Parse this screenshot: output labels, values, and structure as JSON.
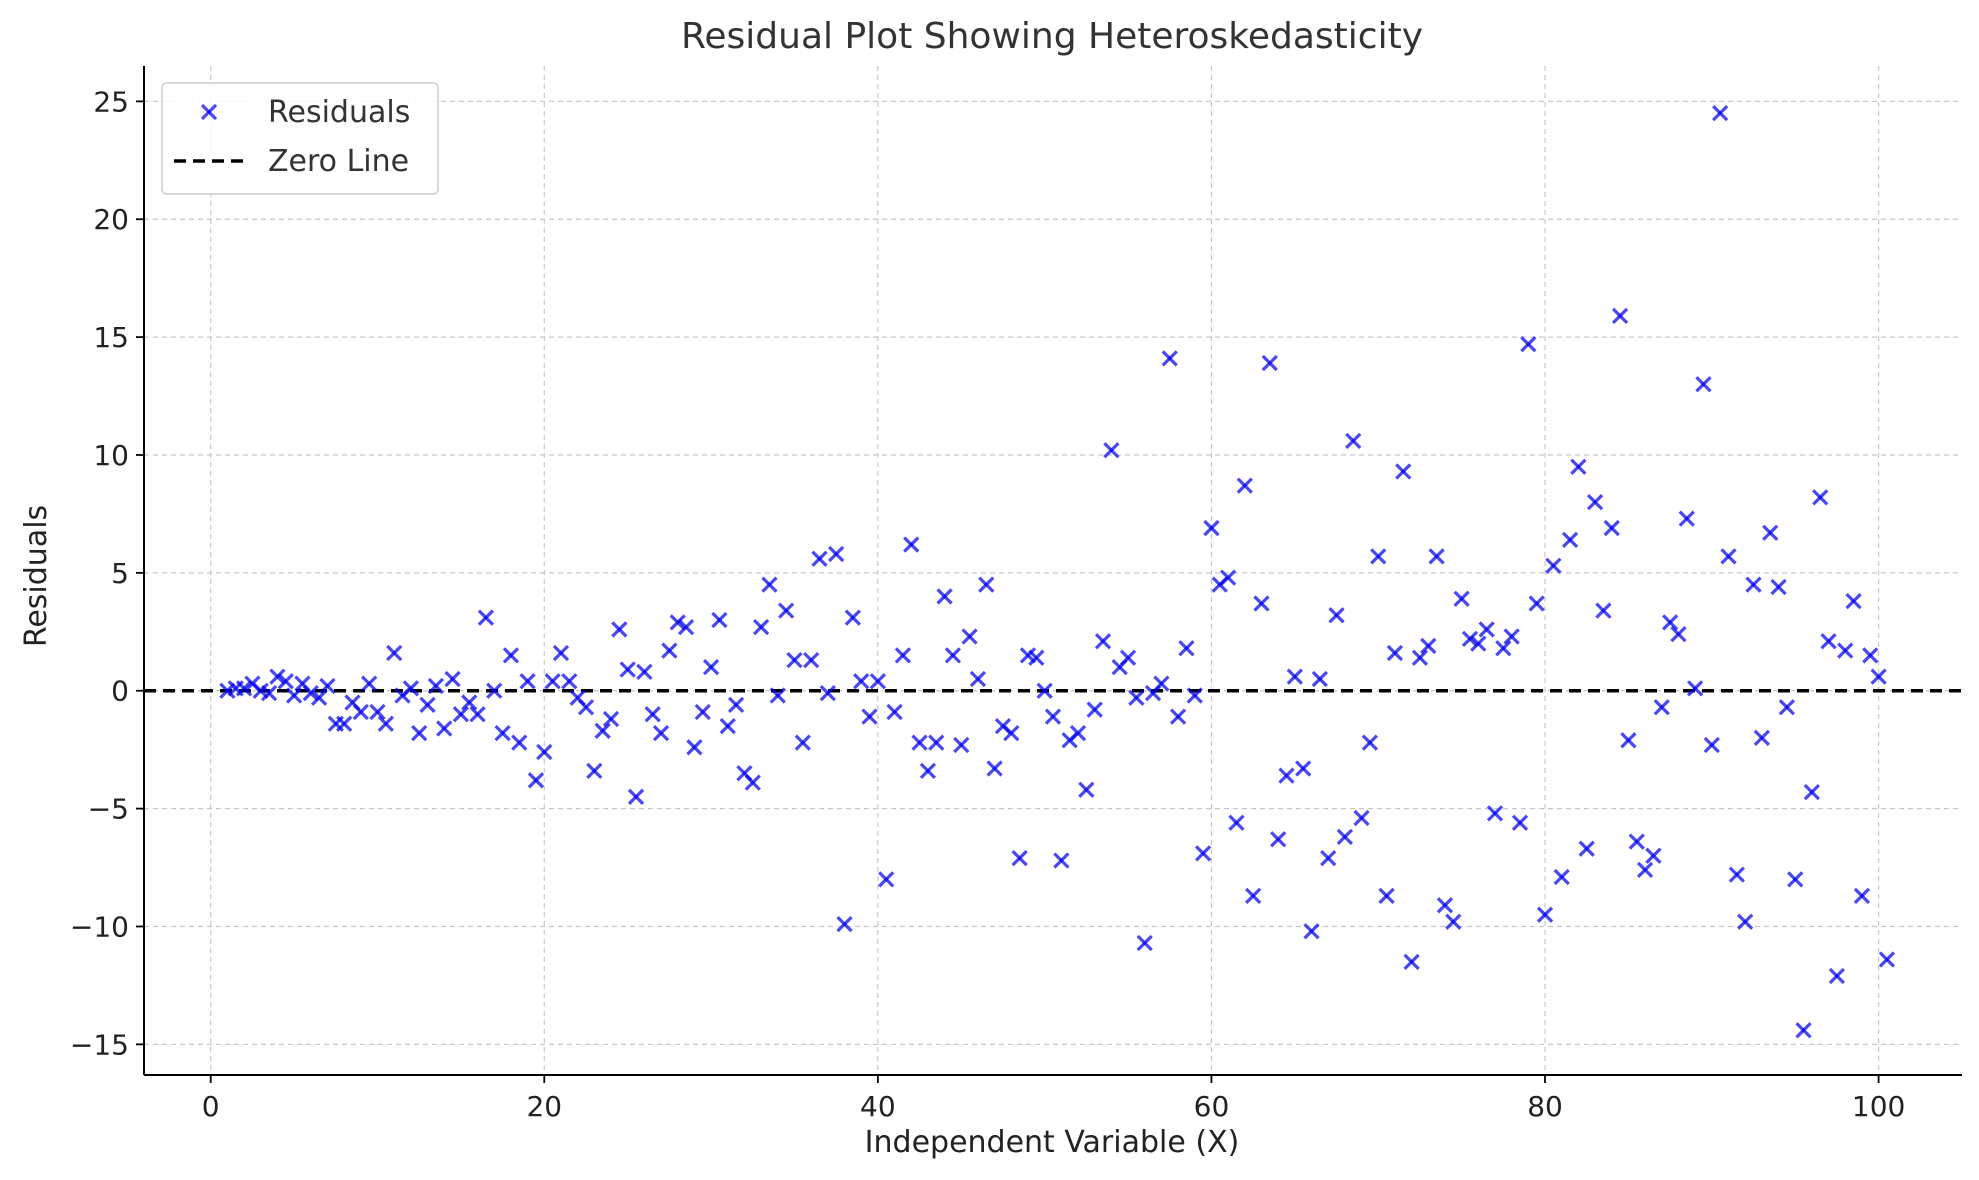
{
  "chart_data": {
    "type": "scatter",
    "title": "Residual Plot Showing Heteroskedasticity",
    "xlabel": "Independent Variable (X)",
    "ylabel": "Residuals",
    "xlim": [
      -4,
      105
    ],
    "ylim": [
      -16.3,
      26.5
    ],
    "xticks": [
      0,
      20,
      40,
      60,
      80,
      100
    ],
    "yticks": [
      -15,
      -10,
      -5,
      0,
      5,
      10,
      15,
      20,
      25
    ],
    "xtick_labels": [
      "0",
      "20",
      "40",
      "60",
      "80",
      "100"
    ],
    "ytick_labels": [
      "−15",
      "−10",
      "−5",
      "0",
      "5",
      "10",
      "15",
      "20",
      "25"
    ],
    "grid": true,
    "legend_position": "upper-left",
    "marker_color": "#0000ee",
    "zero_line_color": "#000000",
    "series": [
      {
        "name": "Residuals",
        "marker": "x",
        "points": [
          [
            1.0,
            0.0
          ],
          [
            1.5,
            0.1
          ],
          [
            2.0,
            0.1
          ],
          [
            2.5,
            0.3
          ],
          [
            3.0,
            0.0
          ],
          [
            3.5,
            -0.1
          ],
          [
            4.0,
            0.6
          ],
          [
            4.5,
            0.4
          ],
          [
            5.0,
            -0.2
          ],
          [
            5.5,
            0.3
          ],
          [
            6.0,
            -0.1
          ],
          [
            6.5,
            -0.3
          ],
          [
            7.0,
            0.2
          ],
          [
            7.5,
            -1.4
          ],
          [
            8.0,
            -1.4
          ],
          [
            8.5,
            -0.5
          ],
          [
            9.0,
            -0.9
          ],
          [
            9.5,
            0.3
          ],
          [
            10.0,
            -0.9
          ],
          [
            10.5,
            -1.4
          ],
          [
            11.0,
            1.6
          ],
          [
            11.5,
            -0.2
          ],
          [
            12.0,
            0.1
          ],
          [
            12.5,
            -1.8
          ],
          [
            13.0,
            -0.6
          ],
          [
            13.5,
            0.2
          ],
          [
            14.0,
            -1.6
          ],
          [
            14.5,
            0.5
          ],
          [
            15.0,
            -1.0
          ],
          [
            15.5,
            -0.5
          ],
          [
            16.0,
            -1.0
          ],
          [
            16.5,
            3.1
          ],
          [
            17.0,
            0.0
          ],
          [
            17.5,
            -1.8
          ],
          [
            18.0,
            1.5
          ],
          [
            18.5,
            -2.2
          ],
          [
            19.0,
            0.4
          ],
          [
            19.5,
            -3.8
          ],
          [
            20.0,
            -2.6
          ],
          [
            20.5,
            0.4
          ],
          [
            21.0,
            1.6
          ],
          [
            21.5,
            0.4
          ],
          [
            22.0,
            -0.3
          ],
          [
            22.5,
            -0.7
          ],
          [
            23.0,
            -3.4
          ],
          [
            23.5,
            -1.7
          ],
          [
            24.0,
            -1.2
          ],
          [
            24.5,
            2.6
          ],
          [
            25.0,
            0.9
          ],
          [
            25.5,
            -4.5
          ],
          [
            26.0,
            0.8
          ],
          [
            26.5,
            -1.0
          ],
          [
            27.0,
            -1.8
          ],
          [
            27.5,
            1.7
          ],
          [
            28.0,
            2.9
          ],
          [
            28.5,
            2.7
          ],
          [
            29.0,
            -2.4
          ],
          [
            29.5,
            -0.9
          ],
          [
            30.0,
            1.0
          ],
          [
            30.5,
            3.0
          ],
          [
            31.0,
            -1.5
          ],
          [
            31.5,
            -0.6
          ],
          [
            32.0,
            -3.5
          ],
          [
            32.5,
            -3.9
          ],
          [
            33.0,
            2.7
          ],
          [
            33.5,
            4.5
          ],
          [
            34.0,
            -0.2
          ],
          [
            34.5,
            3.4
          ],
          [
            35.0,
            1.3
          ],
          [
            35.5,
            -2.2
          ],
          [
            36.0,
            1.3
          ],
          [
            36.5,
            5.6
          ],
          [
            37.0,
            -0.1
          ],
          [
            37.5,
            5.8
          ],
          [
            38.0,
            -9.9
          ],
          [
            38.5,
            3.1
          ],
          [
            39.0,
            0.4
          ],
          [
            39.5,
            -1.1
          ],
          [
            40.0,
            0.4
          ],
          [
            40.5,
            -8.0
          ],
          [
            41.0,
            -0.9
          ],
          [
            41.5,
            1.5
          ],
          [
            42.0,
            6.2
          ],
          [
            42.5,
            -2.2
          ],
          [
            43.0,
            -3.4
          ],
          [
            43.5,
            -2.2
          ],
          [
            44.0,
            4.0
          ],
          [
            44.5,
            1.5
          ],
          [
            45.0,
            -2.3
          ],
          [
            45.5,
            2.3
          ],
          [
            46.0,
            0.5
          ],
          [
            46.5,
            4.5
          ],
          [
            47.0,
            -3.3
          ],
          [
            47.5,
            -1.5
          ],
          [
            48.0,
            -1.8
          ],
          [
            48.5,
            -7.1
          ],
          [
            49.0,
            1.5
          ],
          [
            49.5,
            1.4
          ],
          [
            50.0,
            0.0
          ],
          [
            50.5,
            -1.1
          ],
          [
            51.0,
            -7.2
          ],
          [
            51.5,
            -2.1
          ],
          [
            52.0,
            -1.8
          ],
          [
            52.5,
            -4.2
          ],
          [
            53.0,
            -0.8
          ],
          [
            53.5,
            2.1
          ],
          [
            54.0,
            10.2
          ],
          [
            54.5,
            1.0
          ],
          [
            55.0,
            1.4
          ],
          [
            55.5,
            -0.3
          ],
          [
            56.0,
            -10.7
          ],
          [
            56.5,
            -0.1
          ],
          [
            57.0,
            0.3
          ],
          [
            57.5,
            14.1
          ],
          [
            58.0,
            -1.1
          ],
          [
            58.5,
            1.8
          ],
          [
            59.0,
            -0.2
          ],
          [
            59.5,
            -6.9
          ],
          [
            60.0,
            6.9
          ],
          [
            60.5,
            4.5
          ],
          [
            61.0,
            4.8
          ],
          [
            61.5,
            -5.6
          ],
          [
            62.0,
            8.7
          ],
          [
            62.5,
            -8.7
          ],
          [
            63.0,
            3.7
          ],
          [
            63.5,
            13.9
          ],
          [
            64.0,
            -6.3
          ],
          [
            64.5,
            -3.6
          ],
          [
            65.0,
            0.6
          ],
          [
            65.5,
            -3.3
          ],
          [
            66.0,
            -10.2
          ],
          [
            66.5,
            0.5
          ],
          [
            67.0,
            -7.1
          ],
          [
            67.5,
            3.2
          ],
          [
            68.0,
            -6.2
          ],
          [
            68.5,
            10.6
          ],
          [
            69.0,
            -5.4
          ],
          [
            69.5,
            -2.2
          ],
          [
            70.0,
            5.7
          ],
          [
            70.5,
            -8.7
          ],
          [
            71.0,
            1.6
          ],
          [
            71.5,
            9.3
          ],
          [
            72.0,
            -11.5
          ],
          [
            72.5,
            1.4
          ],
          [
            73.0,
            1.9
          ],
          [
            73.5,
            5.7
          ],
          [
            74.0,
            -9.1
          ],
          [
            74.5,
            -9.8
          ],
          [
            75.0,
            3.9
          ],
          [
            75.5,
            2.2
          ],
          [
            76.0,
            2.0
          ],
          [
            76.5,
            2.6
          ],
          [
            77.0,
            -5.2
          ],
          [
            77.5,
            1.8
          ],
          [
            78.0,
            2.3
          ],
          [
            78.5,
            -5.6
          ],
          [
            79.0,
            14.7
          ],
          [
            79.5,
            3.7
          ],
          [
            80.0,
            -9.5
          ],
          [
            80.5,
            5.3
          ],
          [
            81.0,
            -7.9
          ],
          [
            81.5,
            6.4
          ],
          [
            82.0,
            9.5
          ],
          [
            82.5,
            -6.7
          ],
          [
            83.0,
            8.0
          ],
          [
            83.5,
            3.4
          ],
          [
            84.0,
            6.9
          ],
          [
            84.5,
            15.9
          ],
          [
            85.0,
            -2.1
          ],
          [
            85.5,
            -6.4
          ],
          [
            86.0,
            -7.6
          ],
          [
            86.5,
            -7.0
          ],
          [
            87.0,
            -0.7
          ],
          [
            87.5,
            2.9
          ],
          [
            88.0,
            2.4
          ],
          [
            88.5,
            7.3
          ],
          [
            89.0,
            0.1
          ],
          [
            89.5,
            13.0
          ],
          [
            90.0,
            -2.3
          ],
          [
            90.5,
            24.5
          ],
          [
            91.0,
            5.7
          ],
          [
            91.5,
            -7.8
          ],
          [
            92.0,
            -9.8
          ],
          [
            92.5,
            4.5
          ],
          [
            93.0,
            -2.0
          ],
          [
            93.5,
            6.7
          ],
          [
            94.0,
            4.4
          ],
          [
            94.5,
            -0.7
          ],
          [
            95.0,
            -8.0
          ],
          [
            95.5,
            -14.4
          ],
          [
            96.0,
            -4.3
          ],
          [
            96.5,
            8.2
          ],
          [
            97.0,
            2.1
          ],
          [
            97.5,
            -12.1
          ],
          [
            98.0,
            1.7
          ],
          [
            98.5,
            3.8
          ],
          [
            99.0,
            -8.7
          ],
          [
            99.5,
            1.5
          ],
          [
            100.0,
            0.6
          ],
          [
            100.5,
            -11.4
          ]
        ]
      },
      {
        "name": "Zero Line",
        "line": "dashed",
        "y": 0
      }
    ]
  }
}
